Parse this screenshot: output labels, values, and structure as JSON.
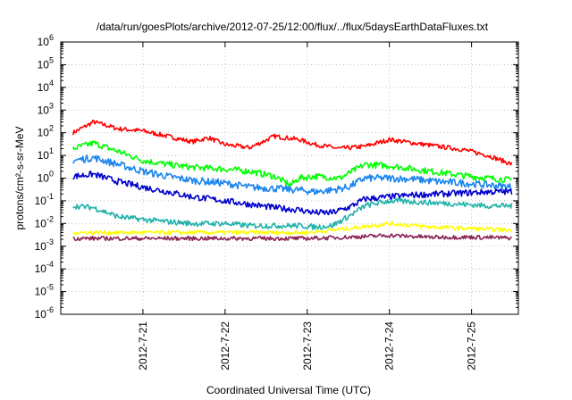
{
  "chart_data": {
    "type": "line",
    "title": "/data/run/goesPlots/archive/2012-07-25/12:00/flux/../flux/5daysEarthDataFluxes.txt",
    "xlabel": "Coordinated Universal Time (UTC)",
    "ylabel": "protons/cm²-s-sr-MeV",
    "y_scale": "log",
    "ylim": [
      1e-06,
      1000000.0
    ],
    "xlim": [
      0,
      5.57
    ],
    "x_unit": "days since 2012-7-20 00:00 (data domain)",
    "x_ticks": [
      {
        "value": 1,
        "label": "2012-7-21"
      },
      {
        "value": 2,
        "label": "2012-7-22"
      },
      {
        "value": 3,
        "label": "2012-7-23"
      },
      {
        "value": 4,
        "label": "2012-7-24"
      },
      {
        "value": 5,
        "label": "2012-7-25"
      }
    ],
    "y_ticks": [
      {
        "base": "10",
        "exp": "-6"
      },
      {
        "base": "10",
        "exp": "-5"
      },
      {
        "base": "10",
        "exp": "-4"
      },
      {
        "base": "10",
        "exp": "-3"
      },
      {
        "base": "10",
        "exp": "-2"
      },
      {
        "base": "10",
        "exp": "-1"
      },
      {
        "base": "10",
        "exp": "0"
      },
      {
        "base": "10",
        "exp": "1"
      },
      {
        "base": "10",
        "exp": "2"
      },
      {
        "base": "10",
        "exp": "3"
      },
      {
        "base": "10",
        "exp": "4"
      },
      {
        "base": "10",
        "exp": "5"
      },
      {
        "base": "10",
        "exp": "6"
      }
    ],
    "grid": true,
    "series": [
      {
        "color": "#ff0000",
        "x": [
          0.15,
          0.4,
          0.7,
          1.0,
          1.3,
          1.6,
          1.8,
          2.0,
          2.3,
          2.6,
          2.9,
          3.1,
          3.4,
          3.7,
          4.0,
          4.3,
          4.6,
          4.9,
          5.2,
          5.5
        ],
        "y": [
          100,
          300,
          150,
          120,
          70,
          40,
          60,
          30,
          22,
          70,
          50,
          30,
          20,
          25,
          50,
          35,
          25,
          18,
          10,
          4
        ]
      },
      {
        "color": "#00ff00",
        "x": [
          0.15,
          0.4,
          0.7,
          1.0,
          1.3,
          1.6,
          2.0,
          2.3,
          2.6,
          2.8,
          2.9,
          3.1,
          3.4,
          3.7,
          4.0,
          4.3,
          4.6,
          4.9,
          5.2,
          5.5
        ],
        "y": [
          20,
          35,
          15,
          6,
          4,
          3,
          2.5,
          2,
          1.2,
          0.5,
          1,
          1.2,
          1,
          4,
          3.5,
          2.5,
          1.8,
          1.3,
          1,
          0.8
        ]
      },
      {
        "color": "#1c86ee",
        "x": [
          0.15,
          0.4,
          0.7,
          1.0,
          1.3,
          1.6,
          2.0,
          2.3,
          2.6,
          2.9,
          3.1,
          3.3,
          3.5,
          3.7,
          4.0,
          4.3,
          4.6,
          4.9,
          5.2,
          5.5
        ],
        "y": [
          6,
          8,
          4,
          2,
          1.2,
          0.8,
          0.6,
          0.4,
          0.35,
          0.3,
          0.25,
          0.3,
          0.4,
          1,
          1,
          0.9,
          0.7,
          0.6,
          0.5,
          0.4
        ]
      },
      {
        "color": "#0000cd",
        "x": [
          0.15,
          0.4,
          0.7,
          1.0,
          1.3,
          1.6,
          2.0,
          2.3,
          2.6,
          2.9,
          3.1,
          3.3,
          3.5,
          3.7,
          4.0,
          4.3,
          4.6,
          4.9,
          5.2,
          5.5
        ],
        "y": [
          1.2,
          1.5,
          0.7,
          0.4,
          0.25,
          0.15,
          0.1,
          0.07,
          0.05,
          0.04,
          0.03,
          0.03,
          0.05,
          0.12,
          0.15,
          0.18,
          0.2,
          0.22,
          0.25,
          0.25
        ]
      },
      {
        "color": "#20b2aa",
        "x": [
          0.15,
          0.4,
          0.7,
          1.0,
          1.3,
          1.6,
          2.0,
          2.3,
          2.6,
          2.9,
          3.1,
          3.3,
          3.5,
          3.7,
          4.0,
          4.3,
          4.6,
          4.9,
          5.2,
          5.5
        ],
        "y": [
          0.06,
          0.05,
          0.02,
          0.015,
          0.012,
          0.01,
          0.01,
          0.008,
          0.008,
          0.008,
          0.007,
          0.008,
          0.02,
          0.06,
          0.1,
          0.09,
          0.08,
          0.07,
          0.06,
          0.06
        ]
      },
      {
        "color": "#ffff00",
        "x": [
          0.15,
          0.5,
          1.0,
          1.5,
          2.0,
          2.5,
          3.0,
          3.5,
          4.0,
          4.5,
          5.0,
          5.5
        ],
        "y": [
          0.004,
          0.004,
          0.004,
          0.004,
          0.004,
          0.004,
          0.004,
          0.006,
          0.01,
          0.007,
          0.006,
          0.005
        ]
      },
      {
        "color": "#8b2252",
        "x": [
          0.15,
          0.5,
          1.0,
          1.5,
          2.0,
          2.5,
          3.0,
          3.5,
          4.0,
          4.5,
          5.0,
          5.5
        ],
        "y": [
          0.0022,
          0.0022,
          0.0022,
          0.0022,
          0.0022,
          0.0022,
          0.0022,
          0.0025,
          0.003,
          0.0025,
          0.0025,
          0.0023
        ]
      }
    ]
  }
}
